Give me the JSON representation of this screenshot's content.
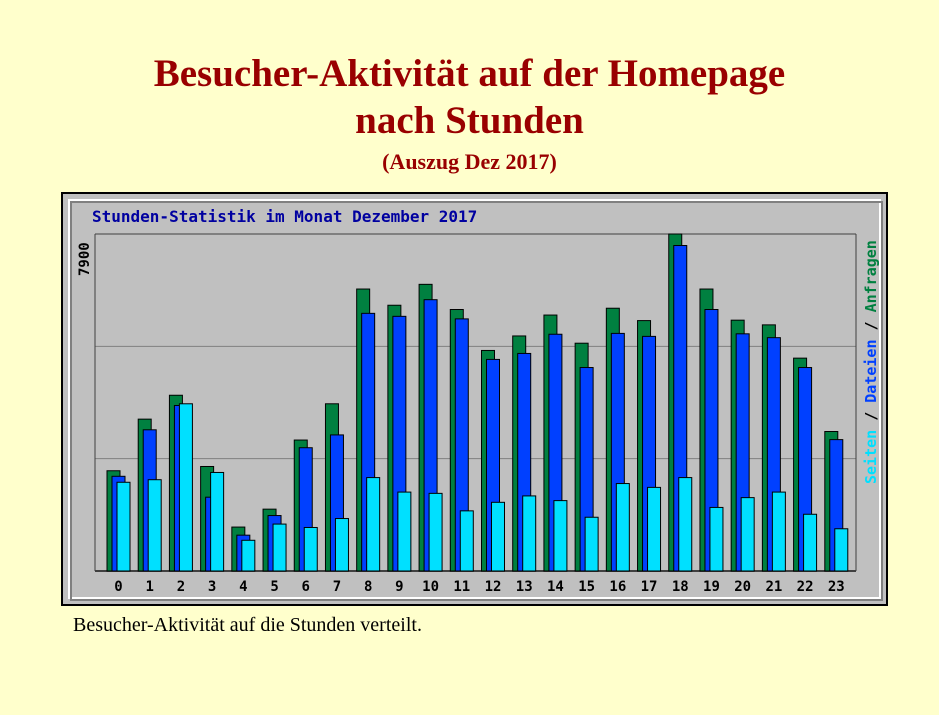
{
  "page": {
    "title_line1": "Besucher-Aktivität auf der Homepage",
    "title_line2": "nach Stunden",
    "subtitle": "(Auszug Dez 2017)",
    "caption": "Besucher-Aktivität auf die Stunden verteilt."
  },
  "colors": {
    "background": "#ffffcc",
    "title": "#990000",
    "chart_bg": "#c0c0c0",
    "anfragen": "#008040",
    "dateien": "#0040ff",
    "seiten": "#00e0ff",
    "chart_title": "#0000a0"
  },
  "chart_data": {
    "type": "bar",
    "title": "Stunden-Statistik im Monat Dezember 2017",
    "ymax_label": "7900",
    "ylim": [
      0,
      7900
    ],
    "categories": [
      "0",
      "1",
      "2",
      "3",
      "4",
      "5",
      "6",
      "7",
      "8",
      "9",
      "10",
      "11",
      "12",
      "13",
      "14",
      "15",
      "16",
      "17",
      "18",
      "19",
      "20",
      "21",
      "22",
      "23"
    ],
    "series": [
      {
        "name": "Anfragen",
        "color": "#008040",
        "values": [
          2350,
          3560,
          4120,
          2450,
          1030,
          1450,
          3070,
          3920,
          6610,
          6230,
          6720,
          6130,
          5170,
          5510,
          6000,
          5340,
          6160,
          5870,
          7900,
          6610,
          5880,
          5770,
          4990,
          3270
        ]
      },
      {
        "name": "Dateien",
        "color": "#0040ff",
        "values": [
          2220,
          3310,
          3880,
          1730,
          840,
          1300,
          2890,
          3190,
          6040,
          5970,
          6360,
          5910,
          4960,
          5100,
          5550,
          4770,
          5570,
          5500,
          7630,
          6130,
          5560,
          5470,
          4770,
          3080
        ]
      },
      {
        "name": "Seiten",
        "color": "#00e0ff",
        "values": [
          2080,
          2140,
          3920,
          2310,
          720,
          1100,
          1020,
          1230,
          2190,
          1850,
          1820,
          1410,
          1610,
          1760,
          1650,
          1260,
          2050,
          1960,
          2190,
          1490,
          1720,
          1850,
          1330,
          990
        ]
      }
    ],
    "legend": "right-vertical",
    "grid": true
  }
}
